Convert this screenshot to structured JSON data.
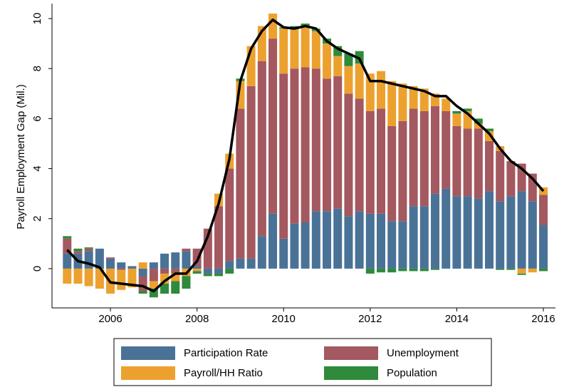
{
  "chart_data": {
    "type": "stacked-bar-line",
    "y_label": "Payroll Employment Gap (Mil.)",
    "x": [
      2005,
      2005.25,
      2005.5,
      2005.75,
      2006,
      2006.25,
      2006.5,
      2006.75,
      2007,
      2007.25,
      2007.5,
      2007.75,
      2008,
      2008.25,
      2008.5,
      2008.75,
      2009,
      2009.25,
      2009.5,
      2009.75,
      2010,
      2010.25,
      2010.5,
      2010.75,
      2011,
      2011.25,
      2011.5,
      2011.75,
      2012,
      2012.25,
      2012.5,
      2012.75,
      2013,
      2013.25,
      2013.5,
      2013.75,
      2014,
      2014.25,
      2014.5,
      2014.75,
      2015,
      2015.25,
      2015.5,
      2015.75,
      2016
    ],
    "series": [
      {
        "name": "Participation Rate",
        "color": "#4a7297",
        "values": [
          0.6,
          0.6,
          0.7,
          0.8,
          0.4,
          0.25,
          0.1,
          -0.3,
          0.25,
          0.6,
          0.65,
          0.7,
          0.1,
          -0.2,
          -0.2,
          0.3,
          0.4,
          0.4,
          1.3,
          2.2,
          1.2,
          1.8,
          1.85,
          2.3,
          2.3,
          2.4,
          2.1,
          2.3,
          2.2,
          2.2,
          1.9,
          1.9,
          2.5,
          2.5,
          3.0,
          3.2,
          2.9,
          2.9,
          2.8,
          3.1,
          2.7,
          2.9,
          3.1,
          2.7,
          1.75
        ]
      },
      {
        "name": "Unemployment",
        "color": "#a4585f",
        "values": [
          0.6,
          0.1,
          0.1,
          0.0,
          0.05,
          -0.05,
          0.0,
          -0.6,
          -0.5,
          -0.2,
          -0.2,
          0.1,
          0.7,
          1.6,
          2.5,
          3.7,
          6.0,
          6.9,
          7.0,
          7.0,
          6.6,
          6.2,
          6.2,
          5.7,
          5.3,
          5.3,
          4.9,
          4.5,
          4.1,
          4.2,
          3.8,
          4.0,
          3.9,
          3.8,
          3.5,
          3.1,
          2.8,
          2.7,
          2.8,
          2.0,
          2.0,
          1.4,
          1.1,
          1.1,
          1.2
        ]
      },
      {
        "name": "Payroll/HH Ratio",
        "color": "#eca12f",
        "values": [
          -0.6,
          -0.6,
          -0.7,
          -0.8,
          -1.0,
          -0.8,
          -0.75,
          0.25,
          -0.3,
          -0.4,
          -0.3,
          -0.3,
          -0.1,
          0.0,
          0.5,
          0.6,
          1.1,
          1.6,
          1.4,
          1.0,
          1.8,
          1.6,
          1.6,
          1.5,
          1.4,
          0.8,
          1.1,
          1.4,
          1.5,
          1.5,
          1.8,
          1.5,
          0.9,
          0.9,
          0.5,
          0.5,
          0.5,
          0.7,
          0.2,
          0.4,
          0.2,
          0.0,
          -0.2,
          -0.15,
          0.3
        ]
      },
      {
        "name": "Population",
        "color": "#2f8a3b",
        "values": [
          0.1,
          0.1,
          0.05,
          0.0,
          0.0,
          0.0,
          0.0,
          -0.1,
          -0.35,
          -0.4,
          -0.5,
          -0.5,
          -0.1,
          -0.1,
          -0.1,
          -0.2,
          0.1,
          0.0,
          0.0,
          0.0,
          0.05,
          0.1,
          0.15,
          0.1,
          0.2,
          0.4,
          0.5,
          0.5,
          -0.2,
          -0.15,
          -0.15,
          -0.1,
          -0.1,
          -0.1,
          -0.05,
          0.0,
          0.1,
          0.1,
          0.2,
          0.1,
          -0.05,
          -0.05,
          -0.05,
          0.0,
          -0.1
        ]
      }
    ],
    "total": {
      "color": "#000000",
      "values": [
        0.75,
        0.3,
        0.2,
        0.05,
        -0.55,
        -0.6,
        -0.65,
        -0.7,
        -0.9,
        -0.5,
        -0.2,
        -0.2,
        0.3,
        1.3,
        2.6,
        4.4,
        7.5,
        8.8,
        9.5,
        9.95,
        9.65,
        9.6,
        9.7,
        9.6,
        9.1,
        8.8,
        8.6,
        8.4,
        7.5,
        7.5,
        7.4,
        7.3,
        7.2,
        7.1,
        6.9,
        6.9,
        6.5,
        6.2,
        5.8,
        5.4,
        4.8,
        4.3,
        4.0,
        3.6,
        3.1
      ]
    },
    "xlim": [
      2004.65,
      2016.28
    ],
    "xticks": [
      2006,
      2008,
      2010,
      2012,
      2014,
      2016
    ],
    "ylim": [
      -1.57,
      10.6
    ],
    "yticks": [
      0,
      2,
      4,
      6,
      8,
      10
    ]
  }
}
